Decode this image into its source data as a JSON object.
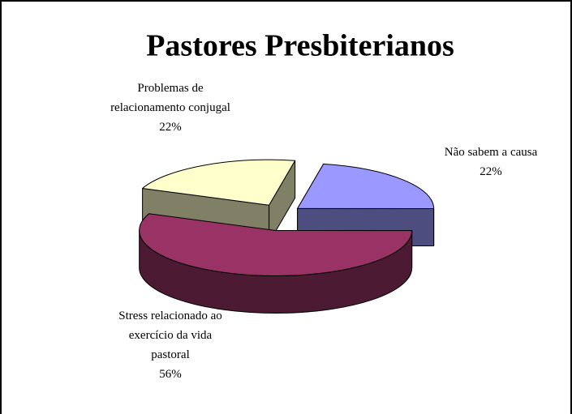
{
  "chart_data": {
    "type": "pie",
    "title": "Pastores Presbiterianos",
    "categories": [
      "Não sabem a causa",
      "Stress relacionado ao exercício da vida pastoral",
      "Problemas de relacionamento conjugal"
    ],
    "values": [
      22,
      56,
      22
    ],
    "value_labels": [
      "22%",
      "56%",
      "22%"
    ],
    "colors": [
      "#9999ff",
      "#993366",
      "#ffffcc"
    ],
    "side_colors": [
      "#4d4d80",
      "#4d1a33",
      "#808066"
    ]
  }
}
